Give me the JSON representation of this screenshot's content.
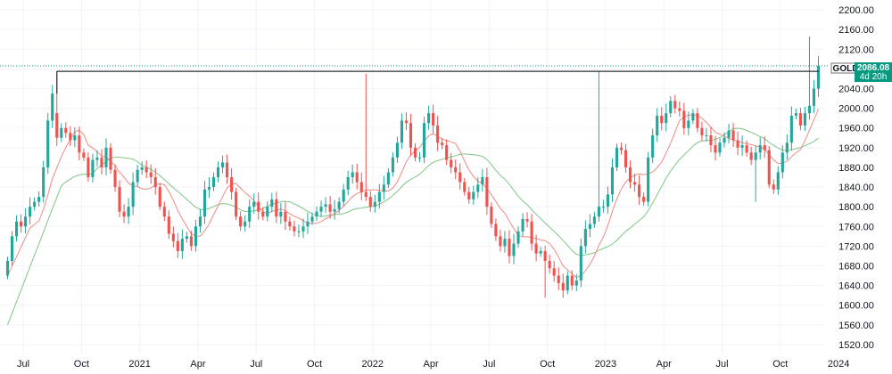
{
  "symbol": "GOLD",
  "last_price": "2086.08",
  "countdown": "4d 20h",
  "colors": {
    "up": "#26a69a",
    "down": "#ef5350",
    "ma_fast": "#f28b82",
    "ma_slow": "#81c784",
    "grid": "#f0f3fa",
    "hline": "#2a2e39",
    "tag_bg": "#089981"
  },
  "chart_data": {
    "type": "candlestick",
    "timeframe": "weekly",
    "ylim": [
      1500,
      2220
    ],
    "y_ticks": [
      1520,
      1560,
      1600,
      1640,
      1680,
      1720,
      1760,
      1800,
      1840,
      1880,
      1920,
      1960,
      2000,
      2040,
      2080,
      2120,
      2160,
      2200
    ],
    "y_tick_labels": [
      "1520.00",
      "1560.00",
      "1600.00",
      "1640.00",
      "1680.00",
      "1720.00",
      "1760.00",
      "1800.00",
      "1840.00",
      "1880.00",
      "1920.00",
      "1960.00",
      "2000.00",
      "2040.00",
      "2080.00",
      "2120.00",
      "2160.00",
      "2200.00"
    ],
    "x_ticks": [
      {
        "label": "Jul",
        "index": 3.5
      },
      {
        "label": "Oct",
        "index": 16.5
      },
      {
        "label": "2021",
        "index": 29.5
      },
      {
        "label": "Apr",
        "index": 42.5
      },
      {
        "label": "Jul",
        "index": 55.5
      },
      {
        "label": "Oct",
        "index": 68.5
      },
      {
        "label": "2022",
        "index": 81.5
      },
      {
        "label": "Apr",
        "index": 94.5
      },
      {
        "label": "Jul",
        "index": 107.5
      },
      {
        "label": "Oct",
        "index": 120.5
      },
      {
        "label": "2023",
        "index": 133.5
      },
      {
        "label": "Apr",
        "index": 146.5
      },
      {
        "label": "Jul",
        "index": 159.5
      },
      {
        "label": "Oct",
        "index": 172.5
      },
      {
        "label": "2024",
        "index": 185.5
      }
    ],
    "resistance_level": 2075,
    "closes": [
      1690,
      1740,
      1770,
      1760,
      1780,
      1800,
      1810,
      1820,
      1880,
      1975,
      2030,
      1940,
      1960,
      1950,
      1935,
      1945,
      1910,
      1900,
      1860,
      1895,
      1900,
      1880,
      1920,
      1875,
      1840,
      1790,
      1780,
      1800,
      1850,
      1875,
      1880,
      1870,
      1860,
      1840,
      1800,
      1780,
      1745,
      1730,
      1710,
      1735,
      1740,
      1720,
      1760,
      1780,
      1835,
      1840,
      1860,
      1880,
      1890,
      1860,
      1830,
      1780,
      1760,
      1770,
      1800,
      1810,
      1790,
      1780,
      1800,
      1815,
      1780,
      1790,
      1770,
      1760,
      1750,
      1750,
      1760,
      1770,
      1780,
      1790,
      1800,
      1805,
      1790,
      1795,
      1810,
      1835,
      1860,
      1870,
      1850,
      1830,
      1820,
      1800,
      1810,
      1830,
      1845,
      1870,
      1900,
      1930,
      1975,
      1970,
      1920,
      1900,
      1900,
      1970,
      1990,
      1965,
      1930,
      1925,
      1895,
      1880,
      1870,
      1850,
      1830,
      1815,
      1830,
      1845,
      1860,
      1800,
      1765,
      1740,
      1720,
      1735,
      1700,
      1725,
      1750,
      1775,
      1770,
      1725,
      1705,
      1710,
      1690,
      1675,
      1660,
      1645,
      1630,
      1660,
      1640,
      1650,
      1720,
      1755,
      1765,
      1780,
      1800,
      1800,
      1825,
      1880,
      1920,
      1915,
      1880,
      1850,
      1845,
      1820,
      1810,
      1900,
      1945,
      1985,
      1970,
      1990,
      2015,
      2000,
      1995,
      1960,
      1975,
      1990,
      1960,
      1945,
      1945,
      1925,
      1910,
      1930,
      1940,
      1955,
      1935,
      1920,
      1925,
      1910,
      1895,
      1910,
      1925,
      1915,
      1845,
      1835,
      1870,
      1910,
      1930,
      1985,
      1990,
      1965,
      1990,
      2005,
      2040,
      2086.08
    ],
    "opens": [
      1660,
      1690,
      1740,
      1770,
      1760,
      1780,
      1800,
      1810,
      1820,
      1880,
      1975,
      1990,
      1940,
      1960,
      1950,
      1935,
      1945,
      1910,
      1900,
      1860,
      1895,
      1900,
      1880,
      1920,
      1875,
      1840,
      1790,
      1780,
      1800,
      1850,
      1875,
      1880,
      1870,
      1860,
      1840,
      1800,
      1780,
      1745,
      1730,
      1710,
      1735,
      1740,
      1720,
      1760,
      1780,
      1835,
      1840,
      1860,
      1880,
      1890,
      1860,
      1830,
      1780,
      1760,
      1770,
      1800,
      1810,
      1790,
      1780,
      1800,
      1815,
      1780,
      1790,
      1770,
      1760,
      1750,
      1750,
      1760,
      1770,
      1780,
      1790,
      1800,
      1805,
      1790,
      1795,
      1810,
      1835,
      1860,
      1870,
      1850,
      1830,
      1820,
      1800,
      1810,
      1830,
      1845,
      1870,
      1900,
      1930,
      1975,
      1970,
      1920,
      1900,
      1900,
      1970,
      1990,
      1965,
      1930,
      1925,
      1895,
      1880,
      1870,
      1850,
      1830,
      1815,
      1830,
      1845,
      1860,
      1800,
      1765,
      1740,
      1720,
      1735,
      1700,
      1725,
      1750,
      1775,
      1770,
      1725,
      1705,
      1710,
      1690,
      1675,
      1660,
      1645,
      1630,
      1660,
      1640,
      1650,
      1720,
      1755,
      1765,
      1780,
      1800,
      1800,
      1825,
      1880,
      1920,
      1915,
      1880,
      1850,
      1845,
      1820,
      1810,
      1900,
      1945,
      1985,
      1970,
      1990,
      2015,
      2000,
      1995,
      1960,
      1975,
      1990,
      1960,
      1945,
      1945,
      1925,
      1910,
      1930,
      1940,
      1955,
      1935,
      1920,
      1925,
      1910,
      1895,
      1910,
      1925,
      1915,
      1845,
      1835,
      1870,
      1910,
      1930,
      1985,
      1990,
      1965,
      1990,
      2005,
      2040
    ]
  }
}
